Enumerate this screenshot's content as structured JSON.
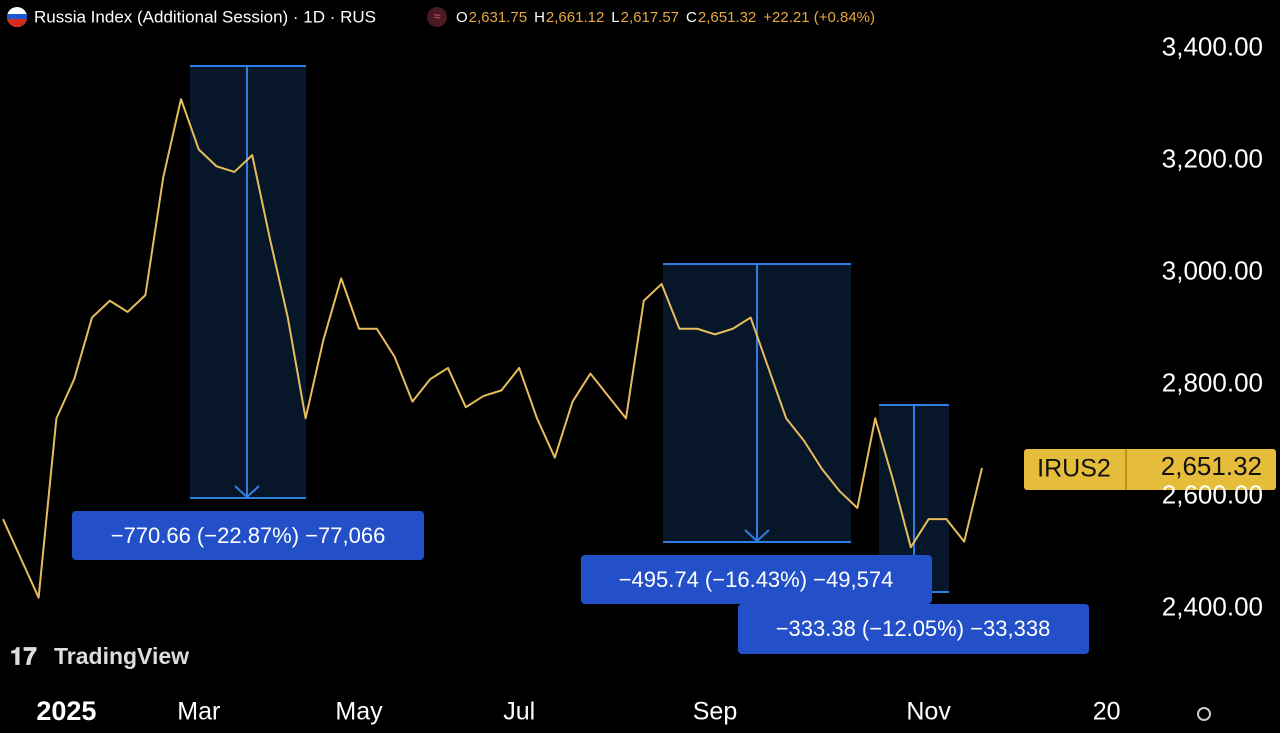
{
  "header": {
    "title": "Russia Index (Additional Session) · 1D · RUS",
    "ohlc": [
      {
        "key": "O",
        "value": "2,631.75"
      },
      {
        "key": "H",
        "value": "2,661.12"
      },
      {
        "key": "L",
        "value": "2,617.57"
      },
      {
        "key": "C",
        "value": "2,651.32"
      }
    ],
    "change": "+22.21 (+0.84%)"
  },
  "price_tag": {
    "symbol": "IRUS2",
    "price": "2,651.32"
  },
  "measures": [
    "−770.66 (−22.87%) −77,066",
    "−495.74 (−16.43%) −49,574",
    "−333.38 (−12.05%) −33,338"
  ],
  "logo": "TradingView",
  "chart_data": {
    "type": "line",
    "color": "#e6bd5c",
    "categories": [
      null,
      null,
      null,
      "2025",
      null,
      null,
      null,
      null,
      null,
      null,
      null,
      "Mar",
      null,
      null,
      null,
      null,
      null,
      null,
      null,
      null,
      "May",
      null,
      null,
      null,
      null,
      null,
      null,
      null,
      null,
      "Jul",
      null,
      null,
      null,
      null,
      null,
      null,
      null,
      null,
      null,
      null,
      "Sep",
      null,
      null,
      null,
      null,
      null,
      null,
      null,
      null,
      null,
      null,
      null,
      "Nov",
      null,
      null,
      null,
      null,
      null,
      null,
      null,
      null,
      null,
      "20",
      null
    ],
    "values": [
      2560,
      2490,
      2420,
      2740,
      2810,
      2920,
      2950,
      2930,
      2960,
      3170,
      3310,
      3220,
      3190,
      3180,
      3210,
      3060,
      2920,
      2740,
      2880,
      2990,
      2900,
      2900,
      2850,
      2770,
      2810,
      2830,
      2760,
      2780,
      2790,
      2830,
      2740,
      2670,
      2770,
      2820,
      2780,
      2740,
      2950,
      2980,
      2900,
      2900,
      2890,
      2900,
      2920,
      2830,
      2740,
      2700,
      2650,
      2610,
      2580,
      2740,
      2630,
      2510,
      2560,
      2560,
      2520,
      2651.32,
      null,
      null,
      null,
      null,
      null,
      null,
      null,
      null
    ],
    "ylim": [
      2255,
      3487
    ],
    "yticks": [
      {
        "value": 2400,
        "label": "2,400.00"
      },
      {
        "value": 2600,
        "label": "2,600.00"
      },
      {
        "value": 2800,
        "label": "2,800.00"
      },
      {
        "value": 3000,
        "label": "3,000.00"
      },
      {
        "value": 3200,
        "label": "3,200.00"
      },
      {
        "value": 3400,
        "label": "3,400.00"
      }
    ],
    "grid": false
  }
}
